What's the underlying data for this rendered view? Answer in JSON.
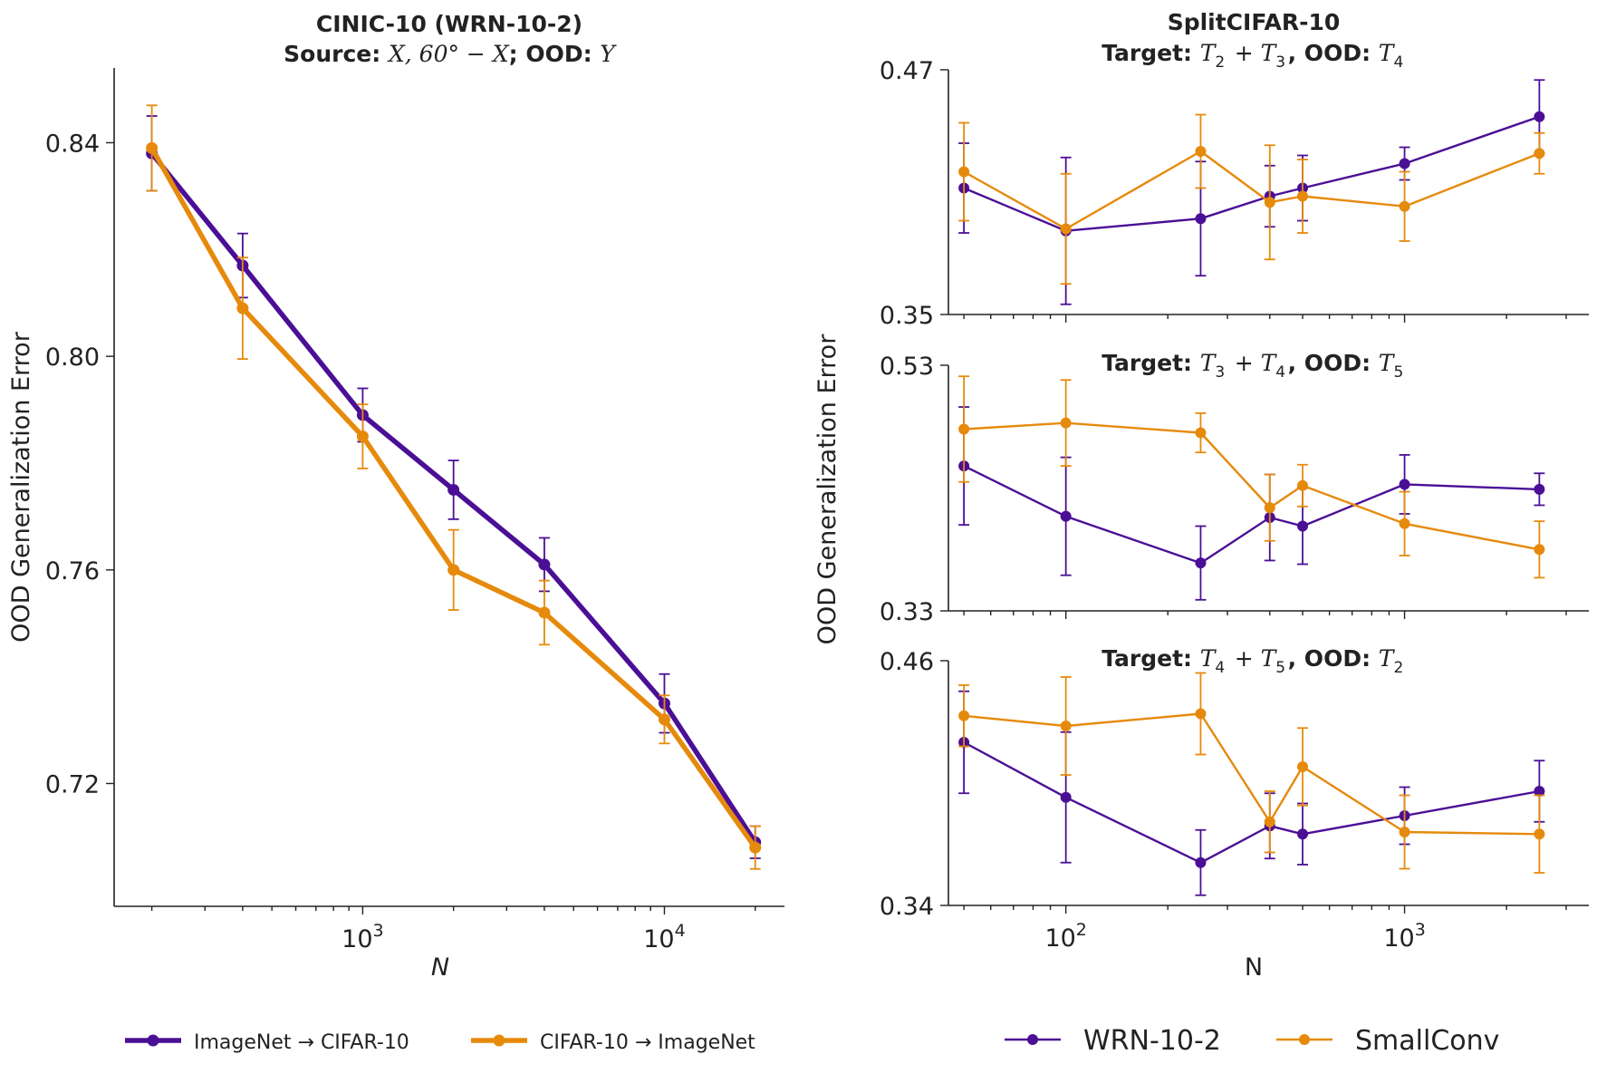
{
  "colors": {
    "purple": "#4b0f96",
    "orange": "#e68a0c",
    "axis": "#222222"
  },
  "chart_data": [
    {
      "type": "line",
      "id": "cinic",
      "title_line1": "CINIC-10 (WRN-10-2)",
      "title_line2_bold1": "Source: ",
      "title_line2_math1": "X, 60° − X",
      "title_line2_bold2": "; OOD: ",
      "title_line2_math2": "Y",
      "xlabel": "N",
      "ylabel": "OOD Generalization Error",
      "xscale": "log",
      "xlim": [
        150,
        25000
      ],
      "ylim": [
        0.697,
        0.854
      ],
      "yticks": [
        0.72,
        0.76,
        0.8,
        0.84
      ],
      "ytick_labels": [
        "0.72",
        "0.76",
        "0.80",
        "0.84"
      ],
      "xticks_major": [
        {
          "value": 1000,
          "base": "10",
          "exp": "3"
        },
        {
          "value": 10000,
          "base": "10",
          "exp": "4"
        }
      ],
      "series": [
        {
          "name": "ImageNet → CIFAR-10",
          "color": "purple",
          "x": [
            200,
            400,
            1000,
            2000,
            4000,
            10000,
            20000
          ],
          "y": [
            0.838,
            0.817,
            0.789,
            0.775,
            0.761,
            0.735,
            0.709
          ],
          "err": [
            0.007,
            0.006,
            0.005,
            0.0055,
            0.005,
            0.0055,
            0.003
          ]
        },
        {
          "name": "CIFAR-10 → ImageNet",
          "color": "orange",
          "x": [
            200,
            400,
            1000,
            2000,
            4000,
            10000,
            20000
          ],
          "y": [
            0.839,
            0.809,
            0.785,
            0.76,
            0.752,
            0.732,
            0.708
          ],
          "err": [
            0.008,
            0.0095,
            0.006,
            0.0075,
            0.006,
            0.0045,
            0.004
          ]
        }
      ],
      "legend": [
        {
          "label_left": "ImageNet",
          "label_right": "CIFAR-10",
          "color": "purple"
        },
        {
          "label_left": "CIFAR-10",
          "label_right": "ImageNet",
          "color": "orange"
        }
      ]
    },
    {
      "type": "line",
      "id": "split-top",
      "suptitle": "SplitCIFAR-10",
      "title_parts": [
        {
          "t": "Target: ",
          "s": "b"
        },
        {
          "t": "T",
          "s": "i"
        },
        {
          "t": "2",
          "s": "sub"
        },
        {
          "t": " + ",
          "s": "n"
        },
        {
          "t": "T",
          "s": "i"
        },
        {
          "t": "3",
          "s": "sub"
        },
        {
          "t": ", OOD: ",
          "s": "b"
        },
        {
          "t": "T",
          "s": "i"
        },
        {
          "t": "4",
          "s": "sub"
        }
      ],
      "xscale": "log",
      "xlim": [
        45,
        3500
      ],
      "ylim": [
        0.35,
        0.47
      ],
      "ytick_labels": [
        "0.35",
        "0.47"
      ],
      "series": [
        {
          "name": "WRN-10-2",
          "color": "purple",
          "x": [
            50,
            100,
            250,
            400,
            500,
            1000,
            2500
          ],
          "y": [
            0.412,
            0.391,
            0.397,
            0.408,
            0.412,
            0.424,
            0.447
          ],
          "err": [
            0.022,
            0.036,
            0.028,
            0.015,
            0.016,
            0.008,
            0.018
          ]
        },
        {
          "name": "SmallConv",
          "color": "orange",
          "x": [
            50,
            100,
            250,
            400,
            500,
            1000,
            2500
          ],
          "y": [
            0.42,
            0.392,
            0.43,
            0.405,
            0.408,
            0.403,
            0.429
          ],
          "err": [
            0.024,
            0.027,
            0.018,
            0.028,
            0.018,
            0.017,
            0.01
          ]
        }
      ]
    },
    {
      "type": "line",
      "id": "split-mid",
      "title_parts": [
        {
          "t": "Target: ",
          "s": "b"
        },
        {
          "t": "T",
          "s": "i"
        },
        {
          "t": "3",
          "s": "sub"
        },
        {
          "t": " + ",
          "s": "n"
        },
        {
          "t": "T",
          "s": "i"
        },
        {
          "t": "4",
          "s": "sub"
        },
        {
          "t": ", OOD: ",
          "s": "b"
        },
        {
          "t": "T",
          "s": "i"
        },
        {
          "t": "5",
          "s": "sub"
        }
      ],
      "xscale": "log",
      "xlim": [
        45,
        3500
      ],
      "ylim": [
        0.33,
        0.53
      ],
      "ytick_labels": [
        "0.33",
        "0.53"
      ],
      "ylabel": "OOD Generalization Error",
      "series": [
        {
          "name": "WRN-10-2",
          "color": "purple",
          "x": [
            50,
            100,
            250,
            400,
            500,
            1000,
            2500
          ],
          "y": [
            0.448,
            0.407,
            0.369,
            0.406,
            0.399,
            0.433,
            0.429
          ],
          "err": [
            0.048,
            0.048,
            0.03,
            0.035,
            0.031,
            0.024,
            0.013
          ]
        },
        {
          "name": "SmallConv",
          "color": "orange",
          "x": [
            50,
            100,
            250,
            400,
            500,
            1000,
            2500
          ],
          "y": [
            0.478,
            0.483,
            0.475,
            0.414,
            0.432,
            0.401,
            0.38
          ],
          "err": [
            0.043,
            0.035,
            0.016,
            0.027,
            0.017,
            0.026,
            0.023
          ]
        }
      ]
    },
    {
      "type": "line",
      "id": "split-bot",
      "title_parts": [
        {
          "t": "Target: ",
          "s": "b"
        },
        {
          "t": "T",
          "s": "i"
        },
        {
          "t": "4",
          "s": "sub"
        },
        {
          "t": " + ",
          "s": "n"
        },
        {
          "t": "T",
          "s": "i"
        },
        {
          "t": "5",
          "s": "sub"
        },
        {
          "t": ", OOD: ",
          "s": "b"
        },
        {
          "t": "T",
          "s": "i"
        },
        {
          "t": "2",
          "s": "sub"
        }
      ],
      "xscale": "log",
      "xlim": [
        45,
        3500
      ],
      "ylim": [
        0.34,
        0.46
      ],
      "ytick_labels": [
        "0.34",
        "0.46"
      ],
      "xlabel": "N",
      "xticks_major": [
        {
          "value": 100,
          "base": "10",
          "exp": "2"
        },
        {
          "value": 1000,
          "base": "10",
          "exp": "3"
        }
      ],
      "series": [
        {
          "name": "WRN-10-2",
          "color": "purple",
          "x": [
            50,
            100,
            250,
            400,
            500,
            1000,
            2500
          ],
          "y": [
            0.42,
            0.393,
            0.361,
            0.379,
            0.375,
            0.384,
            0.396
          ],
          "err": [
            0.025,
            0.032,
            0.016,
            0.016,
            0.015,
            0.014,
            0.015
          ]
        },
        {
          "name": "SmallConv",
          "color": "orange",
          "x": [
            50,
            100,
            250,
            400,
            500,
            1000,
            2500
          ],
          "y": [
            0.433,
            0.428,
            0.434,
            0.381,
            0.408,
            0.376,
            0.375
          ],
          "err": [
            0.015,
            0.024,
            0.02,
            0.015,
            0.019,
            0.018,
            0.019
          ]
        }
      ],
      "legend": [
        {
          "label": "WRN-10-2",
          "color": "purple"
        },
        {
          "label": "SmallConv",
          "color": "orange"
        }
      ]
    }
  ]
}
